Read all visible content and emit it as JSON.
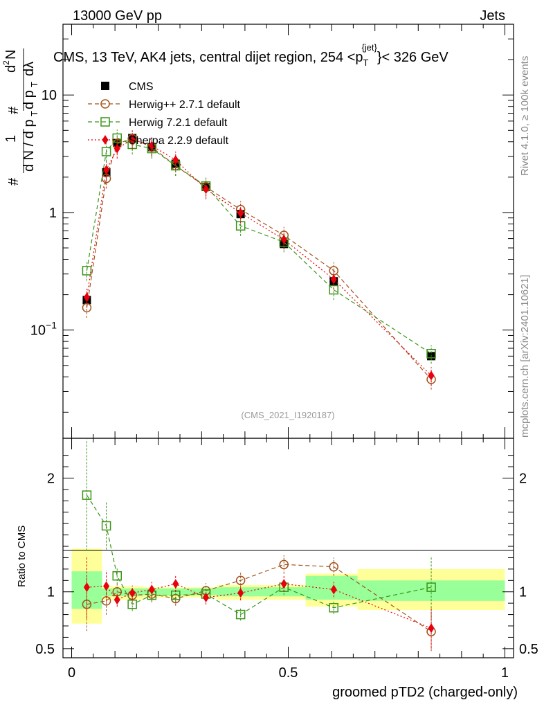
{
  "header": {
    "energy": "13000 GeV pp",
    "category": "Jets",
    "rivet": "Rivet 4.1.0, ≥ 100k events",
    "site": "mcplots.cern.ch [arXiv:2401.10621]",
    "analysis": "(CMS_2021_I1920187)"
  },
  "chart_data": {
    "type": "line",
    "title": "CMS, 13 TeV, AK4 jets, central dijet region, 254 < p_T^{jet} < 326 GeV",
    "title_parts": {
      "main": "CMS, 13 TeV, AK4 jets, central dijet region, 254 <p",
      "sub": "T",
      "sup": "{jet}",
      "tail": "}< 326 GeV"
    },
    "xlabel": "groomed pTD2 (charged-only)",
    "ylabel": "1/dN/dp_T  d²N/dp_T dλ",
    "ratio_ylabel": "Ratio to CMS",
    "xlim": [
      -0.02,
      1.02
    ],
    "ylim": [
      0.012,
      40
    ],
    "yscale": "log",
    "ratio_ylim": [
      0.42,
      2.35
    ],
    "xticks": [
      {
        "v": 0,
        "label": "0"
      },
      {
        "v": 0.5,
        "label": "0.5"
      },
      {
        "v": 1,
        "label": "1"
      }
    ],
    "yticks": [
      {
        "v": 0.1,
        "base": "10",
        "exp": "−1"
      },
      {
        "v": 1,
        "label": "1"
      },
      {
        "v": 10,
        "label": "10"
      }
    ],
    "ratio_yticks": [
      {
        "v": 0.5,
        "label": "0.5"
      },
      {
        "v": 1,
        "label": "1"
      },
      {
        "v": 2,
        "label": "2"
      }
    ],
    "series": [
      {
        "name": "CMS",
        "color": "#000000",
        "marker": "square-filled",
        "line": "none",
        "x": [
          0.035,
          0.08,
          0.105,
          0.14,
          0.185,
          0.24,
          0.31,
          0.39,
          0.49,
          0.605,
          0.83
        ],
        "y": [
          0.18,
          2.2,
          3.9,
          4.3,
          3.6,
          2.6,
          1.65,
          0.97,
          0.54,
          0.26,
          0.06
        ]
      },
      {
        "name": "Herwig++ 2.7.1 default",
        "color": "#a0521b",
        "marker": "circle-open",
        "line": "dashed",
        "x": [
          0.035,
          0.08,
          0.105,
          0.14,
          0.185,
          0.24,
          0.31,
          0.39,
          0.49,
          0.605,
          0.83
        ],
        "y": [
          0.155,
          1.95,
          3.85,
          4.25,
          3.6,
          2.5,
          1.65,
          1.06,
          0.64,
          0.32,
          0.038
        ],
        "ratio": [
          0.89,
          0.92,
          1.0,
          0.97,
          0.98,
          0.94,
          1.01,
          1.1,
          1.24,
          1.22,
          0.65
        ]
      },
      {
        "name": "Herwig 7.2.1 default",
        "color": "#3a9418",
        "marker": "square-open",
        "line": "dashed",
        "x": [
          0.035,
          0.08,
          0.105,
          0.14,
          0.185,
          0.24,
          0.31,
          0.39,
          0.49,
          0.605,
          0.83
        ],
        "y": [
          0.32,
          3.3,
          4.3,
          3.8,
          3.5,
          2.5,
          1.68,
          0.77,
          0.56,
          0.22,
          0.063
        ],
        "ratio": [
          1.85,
          1.58,
          1.14,
          0.89,
          0.97,
          0.97,
          0.98,
          0.8,
          1.04,
          0.86,
          1.04
        ]
      },
      {
        "name": "Sherpa 2.2.9 default",
        "color": "#e8000b",
        "marker": "diamond-filled",
        "line": "dotted",
        "x": [
          0.035,
          0.08,
          0.105,
          0.14,
          0.185,
          0.24,
          0.31,
          0.39,
          0.49,
          0.605,
          0.83
        ],
        "y": [
          0.19,
          2.3,
          3.5,
          4.2,
          3.7,
          2.8,
          1.58,
          0.99,
          0.59,
          0.27,
          0.041
        ],
        "ratio": [
          1.04,
          1.05,
          0.93,
          0.99,
          1.02,
          1.07,
          0.95,
          0.99,
          1.07,
          1.02,
          0.68
        ]
      }
    ],
    "bands": [
      {
        "x0": 0.0,
        "x1": 0.07,
        "stat": [
          0.85,
          1.18
        ],
        "tot": [
          0.72,
          1.38
        ]
      },
      {
        "x0": 0.07,
        "x1": 0.165,
        "stat": [
          0.96,
          1.03
        ],
        "tot": [
          0.93,
          1.05
        ]
      },
      {
        "x0": 0.165,
        "x1": 0.335,
        "stat": [
          0.97,
          1.03
        ],
        "tot": [
          0.95,
          1.04
        ]
      },
      {
        "x0": 0.335,
        "x1": 0.54,
        "stat": [
          0.96,
          1.04
        ],
        "tot": [
          0.93,
          1.06
        ]
      },
      {
        "x0": 0.54,
        "x1": 0.66,
        "stat": [
          0.93,
          1.14
        ],
        "tot": [
          0.87,
          1.16
        ]
      },
      {
        "x0": 0.66,
        "x1": 1.0,
        "stat": [
          0.92,
          1.1
        ],
        "tot": [
          0.84,
          1.2
        ]
      }
    ]
  }
}
